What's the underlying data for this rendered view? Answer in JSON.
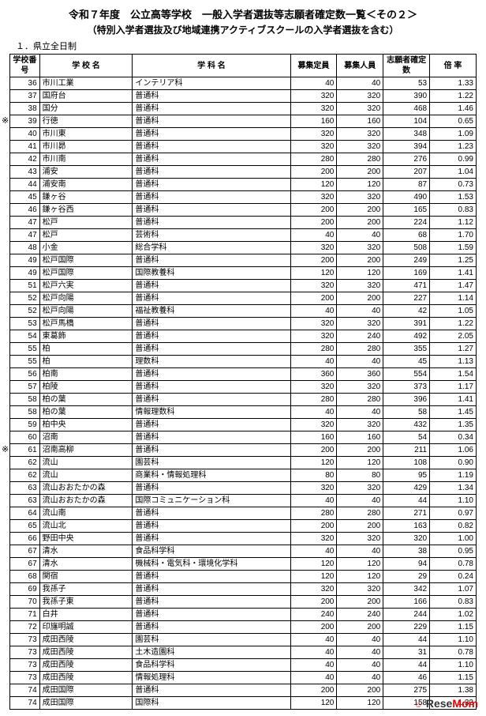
{
  "title1": "令和７年度　公立高等学校　一般入学者選抜等志願者確定数一覧＜その２＞",
  "title2": "（特別入学者選抜及び地域連携アクティブスクールの入学者選抜を含む）",
  "subtitle": "１．県立全日制",
  "headers": {
    "no": "学校番号",
    "school": "学 校 名",
    "dept": "学 科 名",
    "capacity": "募集定員",
    "recruit": "募集人員",
    "applicants": "志願者確定数",
    "rate": "倍 率"
  },
  "markers": [
    {
      "rowIndex": 3,
      "text": "※"
    },
    {
      "rowIndex": 29,
      "text": "※"
    }
  ],
  "rows": [
    {
      "no": "36",
      "school": "市川工業",
      "dept": "インテリア科",
      "cap": "40",
      "rec": "40",
      "app": "53",
      "rate": "1.33"
    },
    {
      "no": "37",
      "school": "国府台",
      "dept": "普通科",
      "cap": "320",
      "rec": "320",
      "app": "390",
      "rate": "1.22"
    },
    {
      "no": "38",
      "school": "国分",
      "dept": "普通科",
      "cap": "320",
      "rec": "320",
      "app": "468",
      "rate": "1.46"
    },
    {
      "no": "39",
      "school": "行徳",
      "dept": "普通科",
      "cap": "160",
      "rec": "160",
      "app": "104",
      "rate": "0.65"
    },
    {
      "no": "40",
      "school": "市川東",
      "dept": "普通科",
      "cap": "320",
      "rec": "320",
      "app": "348",
      "rate": "1.09"
    },
    {
      "no": "41",
      "school": "市川昴",
      "dept": "普通科",
      "cap": "320",
      "rec": "320",
      "app": "394",
      "rate": "1.23"
    },
    {
      "no": "42",
      "school": "市川南",
      "dept": "普通科",
      "cap": "280",
      "rec": "280",
      "app": "276",
      "rate": "0.99"
    },
    {
      "no": "43",
      "school": "浦安",
      "dept": "普通科",
      "cap": "200",
      "rec": "200",
      "app": "207",
      "rate": "1.04"
    },
    {
      "no": "44",
      "school": "浦安南",
      "dept": "普通科",
      "cap": "120",
      "rec": "120",
      "app": "87",
      "rate": "0.73"
    },
    {
      "no": "45",
      "school": "鎌ヶ谷",
      "dept": "普通科",
      "cap": "320",
      "rec": "320",
      "app": "490",
      "rate": "1.53"
    },
    {
      "no": "46",
      "school": "鎌ヶ谷西",
      "dept": "普通科",
      "cap": "200",
      "rec": "200",
      "app": "165",
      "rate": "0.83"
    },
    {
      "no": "47",
      "school": "松戸",
      "dept": "普通科",
      "cap": "200",
      "rec": "200",
      "app": "224",
      "rate": "1.12"
    },
    {
      "no": "47",
      "school": "松戸",
      "dept": "芸術科",
      "cap": "40",
      "rec": "40",
      "app": "68",
      "rate": "1.70"
    },
    {
      "no": "48",
      "school": "小金",
      "dept": "総合学科",
      "cap": "320",
      "rec": "320",
      "app": "508",
      "rate": "1.59"
    },
    {
      "no": "49",
      "school": "松戸国際",
      "dept": "普通科",
      "cap": "200",
      "rec": "200",
      "app": "249",
      "rate": "1.25"
    },
    {
      "no": "49",
      "school": "松戸国際",
      "dept": "国際教養科",
      "cap": "120",
      "rec": "120",
      "app": "169",
      "rate": "1.41"
    },
    {
      "no": "51",
      "school": "松戸六実",
      "dept": "普通科",
      "cap": "320",
      "rec": "320",
      "app": "471",
      "rate": "1.47"
    },
    {
      "no": "52",
      "school": "松戸向陽",
      "dept": "普通科",
      "cap": "200",
      "rec": "200",
      "app": "227",
      "rate": "1.14"
    },
    {
      "no": "52",
      "school": "松戸向陽",
      "dept": "福祉教養科",
      "cap": "40",
      "rec": "40",
      "app": "42",
      "rate": "1.05"
    },
    {
      "no": "53",
      "school": "松戸馬橋",
      "dept": "普通科",
      "cap": "320",
      "rec": "320",
      "app": "391",
      "rate": "1.22"
    },
    {
      "no": "54",
      "school": "東葛飾",
      "dept": "普通科",
      "cap": "320",
      "rec": "240",
      "app": "492",
      "rate": "2.05"
    },
    {
      "no": "55",
      "school": "柏",
      "dept": "普通科",
      "cap": "280",
      "rec": "280",
      "app": "355",
      "rate": "1.27"
    },
    {
      "no": "55",
      "school": "柏",
      "dept": "理数科",
      "cap": "40",
      "rec": "40",
      "app": "45",
      "rate": "1.13"
    },
    {
      "no": "56",
      "school": "柏南",
      "dept": "普通科",
      "cap": "360",
      "rec": "360",
      "app": "554",
      "rate": "1.54"
    },
    {
      "no": "57",
      "school": "柏陵",
      "dept": "普通科",
      "cap": "320",
      "rec": "320",
      "app": "373",
      "rate": "1.17"
    },
    {
      "no": "58",
      "school": "柏の葉",
      "dept": "普通科",
      "cap": "280",
      "rec": "280",
      "app": "396",
      "rate": "1.41"
    },
    {
      "no": "58",
      "school": "柏の葉",
      "dept": "情報理数科",
      "cap": "40",
      "rec": "40",
      "app": "58",
      "rate": "1.45"
    },
    {
      "no": "59",
      "school": "柏中央",
      "dept": "普通科",
      "cap": "320",
      "rec": "320",
      "app": "432",
      "rate": "1.35"
    },
    {
      "no": "60",
      "school": "沼南",
      "dept": "普通科",
      "cap": "160",
      "rec": "160",
      "app": "54",
      "rate": "0.34"
    },
    {
      "no": "61",
      "school": "沼南高柳",
      "dept": "普通科",
      "cap": "200",
      "rec": "200",
      "app": "211",
      "rate": "1.06"
    },
    {
      "no": "62",
      "school": "流山",
      "dept": "園芸科",
      "cap": "120",
      "rec": "120",
      "app": "108",
      "rate": "0.90"
    },
    {
      "no": "62",
      "school": "流山",
      "dept": "商業科・情報処理科",
      "cap": "80",
      "rec": "80",
      "app": "95",
      "rate": "1.19"
    },
    {
      "no": "63",
      "school": "流山おおたかの森",
      "dept": "普通科",
      "cap": "320",
      "rec": "320",
      "app": "429",
      "rate": "1.34"
    },
    {
      "no": "63",
      "school": "流山おおたかの森",
      "dept": "国際コミュニケーション科",
      "cap": "40",
      "rec": "40",
      "app": "44",
      "rate": "1.10"
    },
    {
      "no": "64",
      "school": "流山南",
      "dept": "普通科",
      "cap": "280",
      "rec": "280",
      "app": "271",
      "rate": "0.97"
    },
    {
      "no": "65",
      "school": "流山北",
      "dept": "普通科",
      "cap": "200",
      "rec": "200",
      "app": "163",
      "rate": "0.82"
    },
    {
      "no": "66",
      "school": "野田中央",
      "dept": "普通科",
      "cap": "320",
      "rec": "320",
      "app": "320",
      "rate": "1.00"
    },
    {
      "no": "67",
      "school": "清水",
      "dept": "食品科学科",
      "cap": "40",
      "rec": "40",
      "app": "38",
      "rate": "0.95"
    },
    {
      "no": "67",
      "school": "清水",
      "dept": "機械科・電気科・環境化学科",
      "cap": "120",
      "rec": "120",
      "app": "94",
      "rate": "0.78"
    },
    {
      "no": "68",
      "school": "関宿",
      "dept": "普通科",
      "cap": "120",
      "rec": "120",
      "app": "29",
      "rate": "0.24"
    },
    {
      "no": "69",
      "school": "我孫子",
      "dept": "普通科",
      "cap": "320",
      "rec": "320",
      "app": "342",
      "rate": "1.07"
    },
    {
      "no": "70",
      "school": "我孫子東",
      "dept": "普通科",
      "cap": "200",
      "rec": "200",
      "app": "166",
      "rate": "0.83"
    },
    {
      "no": "71",
      "school": "白井",
      "dept": "普通科",
      "cap": "240",
      "rec": "240",
      "app": "244",
      "rate": "1.02"
    },
    {
      "no": "72",
      "school": "印旛明誠",
      "dept": "普通科",
      "cap": "200",
      "rec": "200",
      "app": "229",
      "rate": "1.15"
    },
    {
      "no": "73",
      "school": "成田西陵",
      "dept": "園芸科",
      "cap": "40",
      "rec": "40",
      "app": "44",
      "rate": "1.10"
    },
    {
      "no": "73",
      "school": "成田西陵",
      "dept": "土木造園科",
      "cap": "40",
      "rec": "40",
      "app": "31",
      "rate": "0.78"
    },
    {
      "no": "73",
      "school": "成田西陵",
      "dept": "食品科学科",
      "cap": "40",
      "rec": "40",
      "app": "44",
      "rate": "1.10"
    },
    {
      "no": "73",
      "school": "成田西陵",
      "dept": "情報処理科",
      "cap": "40",
      "rec": "40",
      "app": "46",
      "rate": "1.15"
    },
    {
      "no": "74",
      "school": "成田国際",
      "dept": "普通科",
      "cap": "200",
      "rec": "200",
      "app": "275",
      "rate": "1.38"
    },
    {
      "no": "74",
      "school": "成田国際",
      "dept": "国際科",
      "cap": "120",
      "rec": "120",
      "app": "158",
      "rate": "1.32"
    }
  ],
  "footer": {
    "brand1": "Rese",
    "brand2": "Mom",
    "face": "☺"
  }
}
